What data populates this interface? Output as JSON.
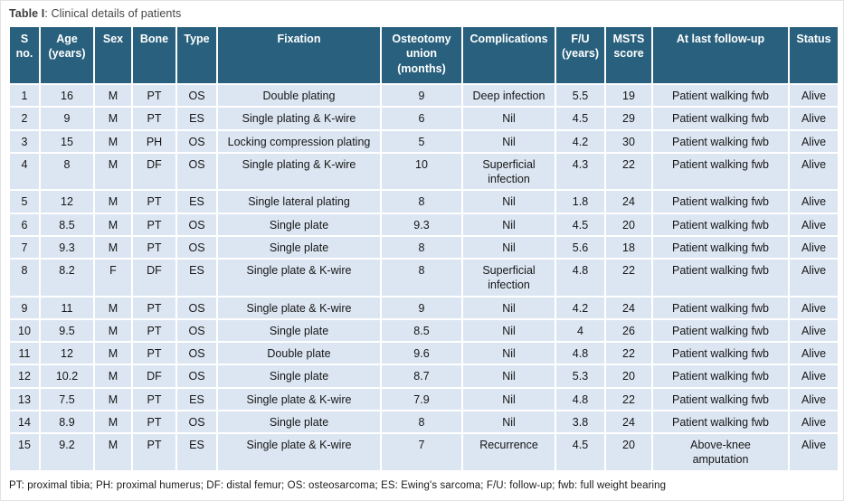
{
  "page": {
    "title_bold": "Table I",
    "title_rest": ": Clinical details of patients",
    "footnote": "PT: proximal tibia; PH: proximal humerus; DF: distal femur; OS: osteosarcoma; ES: Ewing's sarcoma; F/U: follow-up; fwb: full weight bearing"
  },
  "colors": {
    "header_bg": "#29607d",
    "header_text": "#ffffff",
    "row_bg": "#dce6f2",
    "grid": "#ffffff",
    "body_text": "#161616"
  },
  "table": {
    "headers": [
      "S no.",
      "Age (years)",
      "Sex",
      "Bone",
      "Type",
      "Fixation",
      "Osteotomy union (months)",
      "Complications",
      "F/U (years)",
      "MSTS score",
      "At last follow-up",
      "Status"
    ],
    "rows": [
      [
        "1",
        "16",
        "M",
        "PT",
        "OS",
        "Double plating",
        "9",
        "Deep infection",
        "5.5",
        "19",
        "Patient walking fwb",
        "Alive"
      ],
      [
        "2",
        "9",
        "M",
        "PT",
        "ES",
        "Single plating & K-wire",
        "6",
        "Nil",
        "4.5",
        "29",
        "Patient walking fwb",
        "Alive"
      ],
      [
        "3",
        "15",
        "M",
        "PH",
        "OS",
        "Locking compression plating",
        "5",
        "Nil",
        "4.2",
        "30",
        "Patient walking fwb",
        "Alive"
      ],
      [
        "4",
        "8",
        "M",
        "DF",
        "OS",
        "Single plating & K-wire",
        "10",
        "Superficial\ninfection",
        "4.3",
        "22",
        "Patient walking fwb",
        "Alive"
      ],
      [
        "5",
        "12",
        "M",
        "PT",
        "ES",
        "Single lateral plating",
        "8",
        "Nil",
        "1.8",
        "24",
        "Patient walking fwb",
        "Alive"
      ],
      [
        "6",
        "8.5",
        "M",
        "PT",
        "OS",
        "Single plate",
        "9.3",
        "Nil",
        "4.5",
        "20",
        "Patient walking fwb",
        "Alive"
      ],
      [
        "7",
        "9.3",
        "M",
        "PT",
        "OS",
        "Single plate",
        "8",
        "Nil",
        "5.6",
        "18",
        "Patient walking fwb",
        "Alive"
      ],
      [
        "8",
        "8.2",
        "F",
        "DF",
        "ES",
        "Single plate & K-wire",
        "8",
        "Superficial\ninfection",
        "4.8",
        "22",
        "Patient walking fwb",
        "Alive"
      ],
      [
        "9",
        "11",
        "M",
        "PT",
        "OS",
        "Single plate & K-wire",
        "9",
        "Nil",
        "4.2",
        "24",
        "Patient walking fwb",
        "Alive"
      ],
      [
        "10",
        "9.5",
        "M",
        "PT",
        "OS",
        "Single plate",
        "8.5",
        "Nil",
        "4",
        "26",
        "Patient walking fwb",
        "Alive"
      ],
      [
        "11",
        "12",
        "M",
        "PT",
        "OS",
        "Double plate",
        "9.6",
        "Nil",
        "4.8",
        "22",
        "Patient walking fwb",
        "Alive"
      ],
      [
        "12",
        "10.2",
        "M",
        "DF",
        "OS",
        "Single plate",
        "8.7",
        "Nil",
        "5.3",
        "20",
        "Patient walking fwb",
        "Alive"
      ],
      [
        "13",
        "7.5",
        "M",
        "PT",
        "ES",
        "Single plate & K-wire",
        "7.9",
        "Nil",
        "4.8",
        "22",
        "Patient walking fwb",
        "Alive"
      ],
      [
        "14",
        "8.9",
        "M",
        "PT",
        "OS",
        "Single plate",
        "8",
        "Nil",
        "3.8",
        "24",
        "Patient walking fwb",
        "Alive"
      ],
      [
        "15",
        "9.2",
        "M",
        "PT",
        "ES",
        "Single plate & K-wire",
        "7",
        "Recurrence",
        "4.5",
        "20",
        "Above-knee\namputation",
        "Alive"
      ]
    ]
  }
}
